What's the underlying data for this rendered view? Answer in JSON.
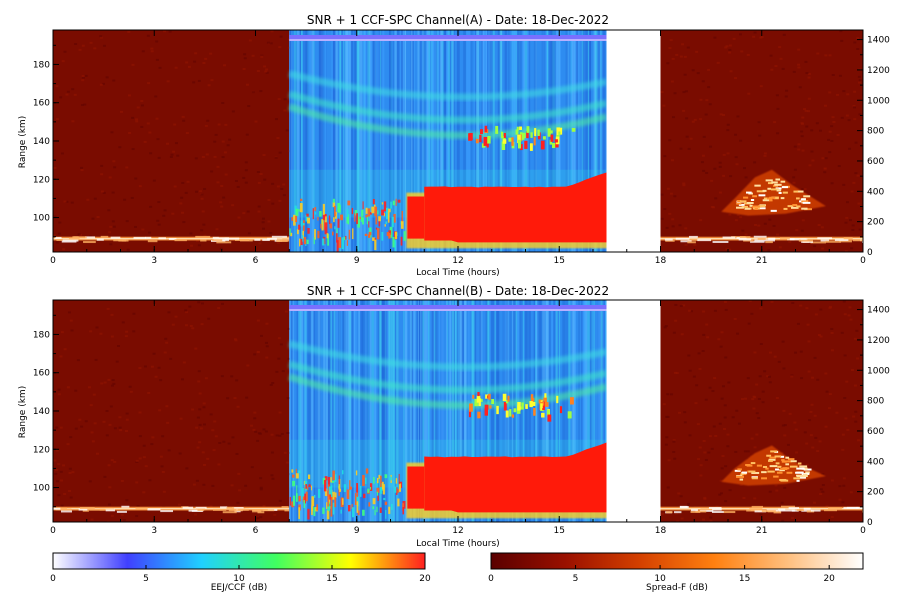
{
  "chart_data": [
    {
      "type": "heatmap",
      "title": "SNR + 1 CCF-SPC Channel(A) - Date: 18-Dec-2022",
      "xlabel": "Local Time (hours)",
      "ylabel": "Range (km)",
      "xlim": [
        0,
        24
      ],
      "ylim": [
        82,
        198
      ],
      "x_ticks": [
        "0",
        "3",
        "6",
        "9",
        "12",
        "15",
        "18",
        "21",
        "0"
      ],
      "y_ticks": [
        "100",
        "120",
        "140",
        "160",
        "180"
      ],
      "y2_ticks": [
        "0",
        "200",
        "400",
        "600",
        "800",
        "1000",
        "1200",
        "1400"
      ],
      "segments": [
        {
          "colormap": "spread-f",
          "x_range": [
            0,
            7.0
          ]
        },
        {
          "colormap": "eej",
          "x_range": [
            7.0,
            16.4
          ]
        },
        {
          "colormap": "none",
          "x_range": [
            16.4,
            18.0
          ]
        },
        {
          "colormap": "spread-f",
          "x_range": [
            18.0,
            24.0
          ]
        }
      ],
      "features": {
        "nighttime_echo_band_km": [
          88,
          90
        ],
        "blanket_echo": {
          "x_range": [
            10.5,
            16.4
          ],
          "range_km": [
            85,
            118
          ],
          "snr_db": 20
        },
        "upper_arc_echo_km_at_noon": 143,
        "upper_echo_strong_km": [
          138,
          148
        ],
        "spread_f_plume": {
          "x_range": [
            19.8,
            22.9
          ],
          "peak_km": 125,
          "peak_time": 21.3
        }
      }
    },
    {
      "type": "heatmap",
      "title": "SNR + 1 CCF-SPC Channel(B) - Date: 18-Dec-2022",
      "xlabel": "Local Time (hours)",
      "ylabel": "Range (km)",
      "xlim": [
        0,
        24
      ],
      "ylim": [
        82,
        198
      ],
      "x_ticks": [
        "0",
        "3",
        "6",
        "9",
        "12",
        "15",
        "18",
        "21",
        "0"
      ],
      "y_ticks": [
        "100",
        "120",
        "140",
        "160",
        "180"
      ],
      "y2_ticks": [
        "0",
        "200",
        "400",
        "600",
        "800",
        "1000",
        "1200",
        "1400"
      ],
      "segments": [
        {
          "colormap": "spread-f",
          "x_range": [
            0,
            7.0
          ]
        },
        {
          "colormap": "eej",
          "x_range": [
            7.0,
            16.4
          ]
        },
        {
          "colormap": "none",
          "x_range": [
            16.4,
            18.0
          ]
        },
        {
          "colormap": "spread-f",
          "x_range": [
            18.0,
            24.0
          ]
        }
      ],
      "features": {
        "nighttime_echo_band_km": [
          88,
          90
        ],
        "blanket_echo": {
          "x_range": [
            10.5,
            16.4
          ],
          "range_km": [
            85,
            118
          ],
          "snr_db": 20
        },
        "upper_arc_echo_km_at_noon": 143,
        "upper_echo_strong_km": [
          138,
          150
        ],
        "spread_f_plume": {
          "x_range": [
            19.8,
            22.9
          ],
          "peak_km": 122,
          "peak_time": 21.3
        }
      }
    }
  ],
  "colorbars": [
    {
      "label": "EEJ/CCF (dB)",
      "range": [
        0,
        20
      ],
      "ticks": [
        "0",
        "5",
        "10",
        "15",
        "20"
      ],
      "stops": [
        "#ffffff",
        "#4040ff",
        "#20d0ff",
        "#40ff60",
        "#ffff00",
        "#ff2020"
      ]
    },
    {
      "label": "Spread-F (dB)",
      "range": [
        0,
        22
      ],
      "ticks": [
        "0",
        "5",
        "10",
        "15",
        "20"
      ],
      "stops": [
        "#5a0000",
        "#9a1000",
        "#d44000",
        "#ff8010",
        "#ffc080",
        "#ffffff"
      ]
    }
  ],
  "colors": {
    "spread_f_background": "#7a0c00",
    "blanket": "#ff1a0a",
    "eej_background": "#2e8cf0"
  }
}
